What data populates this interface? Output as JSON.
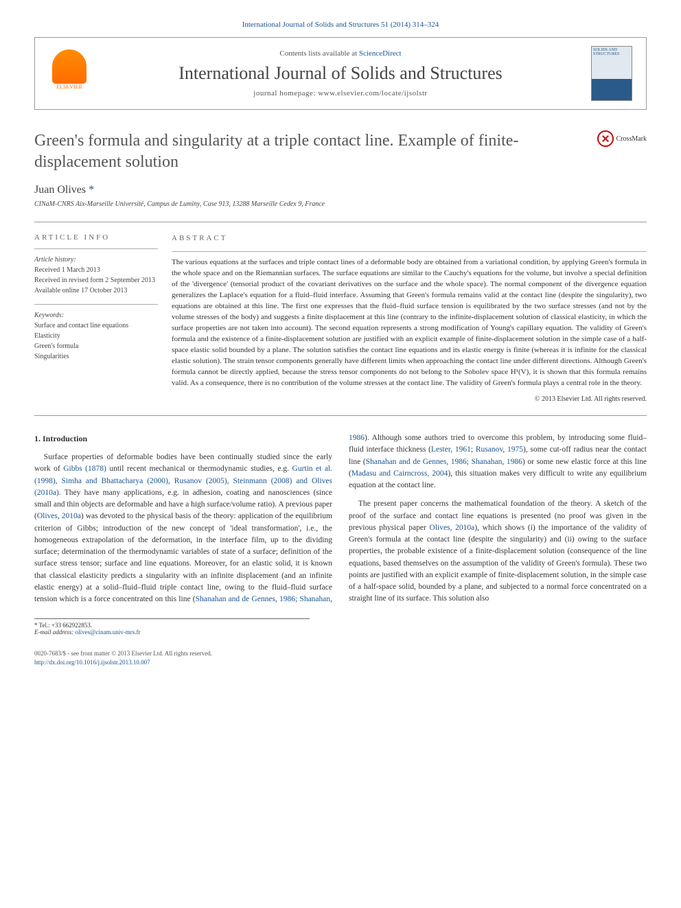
{
  "journal_ref": "International Journal of Solids and Structures 51 (2014) 314–324",
  "header": {
    "contents_prefix": "Contents lists available at ",
    "contents_link": "ScienceDirect",
    "journal_name": "International Journal of Solids and Structures",
    "homepage_pr! prefix": "journal homepage: ",
    "homepage_prefix": "journal homepage: ",
    "homepage_url": "www.elsevier.com/locate/ijsolstr",
    "publisher": "ELSEVIER",
    "cover_text": "SOLIDS AND STRUCTURES"
  },
  "crossmark_label": "CrossMark",
  "article": {
    "title": "Green's formula and singularity at a triple contact line. Example of finite-displacement solution",
    "author_name": "Juan Olives",
    "author_marker": "*",
    "affiliation": "CINaM-CNRS Aix-Marseille Université, Campus de Luminy, Case 913, 13288 Marseille Cedex 9, France"
  },
  "info": {
    "label": "ARTICLE INFO",
    "history_title": "Article history:",
    "history_lines": [
      "Received 1 March 2013",
      "Received in revised form 2 September 2013",
      "Available online 17 October 2013"
    ],
    "keywords_title": "Keywords:",
    "keywords": [
      "Surface and contact line equations",
      "Elasticity",
      "Green's formula",
      "Singularities"
    ]
  },
  "abstract": {
    "label": "ABSTRACT",
    "text": "The various equations at the surfaces and triple contact lines of a deformable body are obtained from a variational condition, by applying Green's formula in the whole space and on the Riemannian surfaces. The surface equations are similar to the Cauchy's equations for the volume, but involve a special definition of the 'divergence' (tensorial product of the covariant derivatives on the surface and the whole space). The normal component of the divergence equation generalizes the Laplace's equation for a fluid–fluid interface. Assuming that Green's formula remains valid at the contact line (despite the singularity), two equations are obtained at this line. The first one expresses that the fluid–fluid surface tension is equilibrated by the two surface stresses (and not by the volume stresses of the body) and suggests a finite displacement at this line (contrary to the infinite-displacement solution of classical elasticity, in which the surface properties are not taken into account). The second equation represents a strong modification of Young's capillary equation. The validity of Green's formula and the existence of a finite-displacement solution are justified with an explicit example of finite-displacement solution in the simple case of a half-space elastic solid bounded by a plane. The solution satisfies the contact line equations and its elastic energy is finite (whereas it is infinite for the classical elastic solution). The strain tensor components generally have different limits when approaching the contact line under different directions. Although Green's formula cannot be directly applied, because the stress tensor components do not belong to the Sobolev space H¹(V), it is shown that this formula remains valid. As a consequence, there is no contribution of the volume stresses at the contact line. The validity of Green's formula plays a central role in the theory.",
    "copyright": "© 2013 Elsevier Ltd. All rights reserved."
  },
  "body": {
    "section_title": "1. Introduction",
    "p1_a": "Surface properties of deformable bodies have been continually studied since the early work of ",
    "p1_c1": "Gibbs (1878)",
    "p1_b": " until recent mechanical or thermodynamic studies, e.g. ",
    "p1_c2": "Gurtin et al. (1998), Simha and Bhattacharya (2000), Rusanov (2005), Steinmann (2008) and Olives (2010a)",
    "p1_c": ". They have many applications, e.g. in adhesion, coating and nanosciences (since small and thin objects are deformable and have a high surface/volume ratio). A previous paper (",
    "p1_c3": "Olives, 2010a",
    "p1_d": ") was devoted to the physical basis of the theory: application of the equilibrium criterion of Gibbs; introduction of the new concept of 'ideal transformation', i.e., the homogeneous extrapolation of the deformation, in the interface film, up to the dividing surface; determination of the thermodynamic variables of state of a surface; definition of the surface stress tensor; surface and line equations. Moreover, for an elastic solid, it is known that classical elasticity predicts a singularity with an infinite displacement (and an infinite elastic energy) at a solid–fluid–fluid triple contact",
    "p1_e": " line, owing to the fluid–fluid surface tension which is a force concentrated on this line (",
    "p1_c4": "Shanahan and de Gennes, 1986; Shanahan, 1986",
    "p1_f": "). Although some authors tried to overcome this problem, by introducing some fluid–fluid interface thickness (",
    "p1_c5": "Lester, 1961; Rusanov, 1975",
    "p1_g": "), some cut-off radius near the contact line (",
    "p1_c6": "Shanahan and de Gennes, 1986; Shanahan, 1986",
    "p1_h": ") or some new elastic force at this line (",
    "p1_c7": "Madasu and Cairncross, 2004",
    "p1_i": "), this situation makes very difficult to write any equilibrium equation at the contact line.",
    "p2_a": "The present paper concerns the mathematical foundation of the theory. A sketch of the proof of the surface and contact line equations is presented (no proof was given in the previous physical paper ",
    "p2_c1": "Olives, 2010a",
    "p2_b": "), which shows (i) the importance of the validity of Green's formula at the contact line (despite the singularity) and (ii) owing to the surface properties, the probable existence of a finite-displacement solution (consequence of the line equations, based themselves on the assumption of the validity of Green's formula). These two points are justified with an explicit example of finite-displacement solution, in the simple case of a half-space solid, bounded by a plane, and subjected to a normal force concentrated on a straight line of its surface. This solution also"
  },
  "footnote": {
    "tel_label": "* Tel.: ",
    "tel": "+33 662922853.",
    "email_label": "E-mail address: ",
    "email": "olives@cinam.univ-mrs.fr"
  },
  "footer": {
    "issn": "0020-7683/$ - see front matter © 2013 Elsevier Ltd. All rights reserved.",
    "doi_label": "http://dx.doi.org/",
    "doi": "10.1016/j.ijsolstr.2013.10.007"
  },
  "colors": {
    "link": "#1a5490",
    "elsevier": "#ff6c00",
    "text": "#333333",
    "heading": "#555555",
    "border": "#999999"
  }
}
